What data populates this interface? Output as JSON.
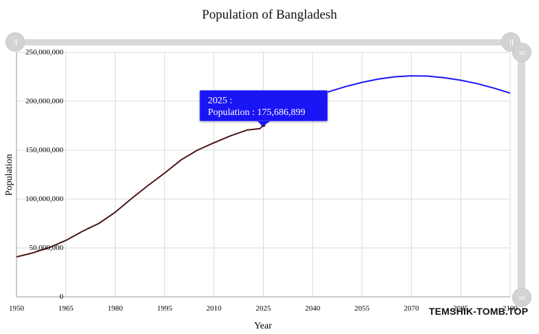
{
  "chart_data": {
    "type": "line",
    "title": "Population of Bangladesh",
    "xlabel": "Year",
    "ylabel": "Population",
    "xlim": [
      1950,
      2100
    ],
    "ylim": [
      0,
      250000000
    ],
    "x_ticks": [
      1950,
      1965,
      1980,
      1995,
      2010,
      2025,
      2040,
      2055,
      2070,
      2085,
      2100
    ],
    "x_tick_labels": [
      "1950",
      "1965",
      "1980",
      "1995",
      "2010",
      "2025",
      "2040",
      "2055",
      "2070",
      "2085",
      "2100"
    ],
    "y_ticks": [
      0,
      50000000,
      100000000,
      150000000,
      200000000,
      250000000
    ],
    "y_tick_labels": [
      "0",
      "50,000,000",
      "100,000,000",
      "150,000,000",
      "200,000,000",
      "250,000,000"
    ],
    "grid": true,
    "series": [
      {
        "color": "#4a1414",
        "x": [
          1950,
          1955,
          1960,
          1965,
          1970,
          1972,
          1975,
          1980,
          1985,
          1990,
          1995,
          2000,
          2005,
          2010,
          2015,
          2020,
          2024,
          2025
        ],
        "values": [
          40800000,
          45000000,
          50400000,
          57700000,
          66900000,
          70200000,
          75000000,
          86500000,
          100600000,
          113900000,
          126500000,
          140000000,
          150000000,
          157500000,
          164600000,
          170500000,
          172000000,
          175686899
        ]
      },
      {
        "color": "#1a15f4",
        "x": [
          2025,
          2030,
          2035,
          2040,
          2045,
          2050,
          2055,
          2060,
          2065,
          2070,
          2075,
          2080,
          2085,
          2090,
          2095,
          2100
        ],
        "values": [
          175686899,
          187000000,
          196000000,
          203300000,
          209800000,
          215000000,
          219300000,
          222700000,
          225000000,
          226000000,
          225700000,
          224000000,
          221500000,
          218000000,
          213500000,
          208300000
        ]
      }
    ],
    "tooltip": {
      "line1": "2025 :",
      "line2": "Population : 175,686,899"
    }
  },
  "watermark": "TEMSHIK-TOMB.TOP",
  "colors": {
    "grid": "#d8d8d8",
    "tooltip_bg": "#1a15f4",
    "historical_line": "#4a1414",
    "projection_line": "#1a15f4"
  }
}
